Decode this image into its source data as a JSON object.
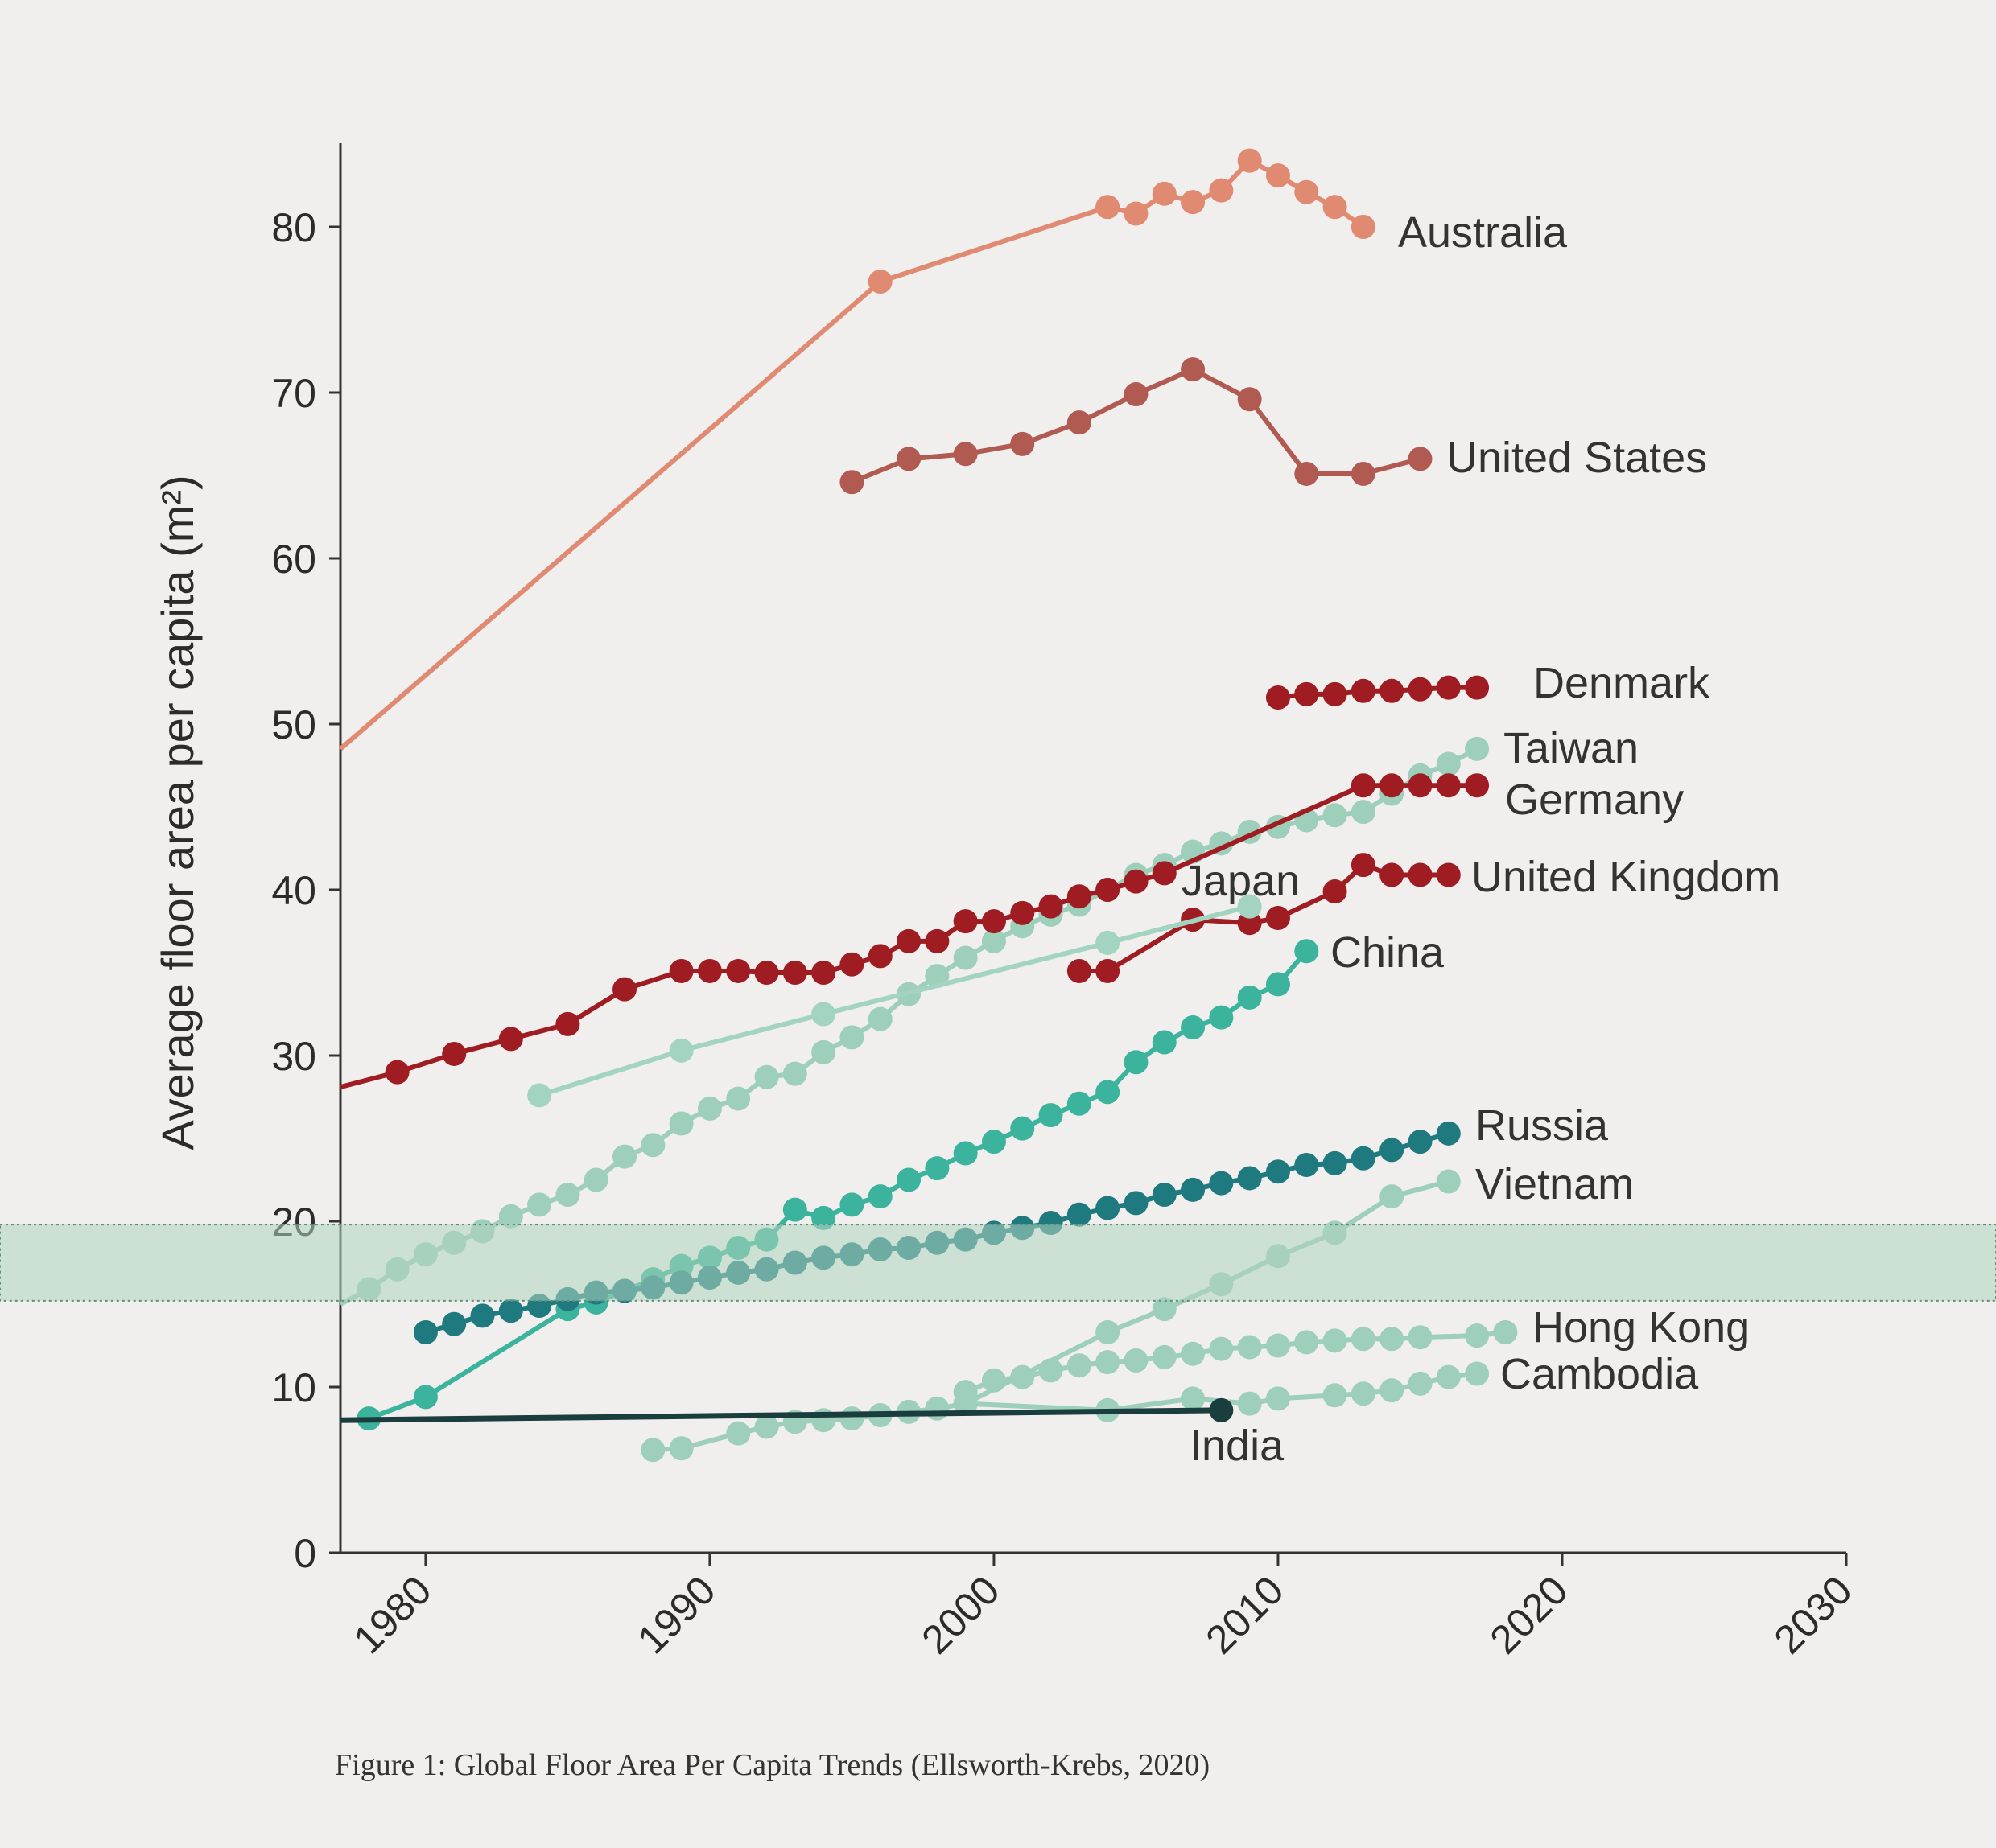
{
  "caption": "Figure 1: Global Floor Area Per Capita Trends (Ellsworth-Krebs, 2020)",
  "chart_data": {
    "type": "line",
    "title": "",
    "xlabel": "",
    "ylabel": "Average floor area per capita (m²)",
    "xlim": [
      1977,
      2030
    ],
    "ylim": [
      0,
      85
    ],
    "x_ticks": [
      1980,
      1990,
      2000,
      2010,
      2020,
      2030
    ],
    "y_ticks": [
      0,
      10,
      20,
      30,
      40,
      50,
      60,
      70,
      80
    ],
    "grid": false,
    "highlight_band": {
      "y_from": 15.2,
      "y_to": 19.8,
      "color": "#aed4bd"
    },
    "series": [
      {
        "name": "Australia",
        "color": "#e08a72",
        "marker": true,
        "x": [
          1977,
          1996,
          2004,
          2005,
          2006,
          2007,
          2008,
          2009,
          2010,
          2011,
          2012,
          2013
        ],
        "y": [
          48.5,
          76.7,
          81.2,
          80.8,
          82,
          81.5,
          82.2,
          84,
          83.1,
          82.1,
          81.2,
          80
        ]
      },
      {
        "name": "United States",
        "color": "#b05a52",
        "marker": true,
        "x": [
          1995,
          1997,
          1999,
          2001,
          2003,
          2005,
          2007,
          2009,
          2011,
          2013,
          2015
        ],
        "y": [
          64.6,
          66,
          66.3,
          66.9,
          68.2,
          69.9,
          71.4,
          69.6,
          65.1,
          65.1,
          66
        ]
      },
      {
        "name": "Denmark",
        "color": "#9e1c22",
        "marker": true,
        "x": [
          2010,
          2011,
          2012,
          2013,
          2014,
          2015,
          2016,
          2017
        ],
        "y": [
          51.6,
          51.8,
          51.8,
          52,
          52,
          52.1,
          52.2,
          52.2
        ]
      },
      {
        "name": "Taiwan",
        "color": "#9dcfba",
        "marker": true,
        "x": [
          1977,
          1978,
          1979,
          1980,
          1981,
          1982,
          1983,
          1984,
          1985,
          1986,
          1987,
          1988,
          1989,
          1990,
          1991,
          1992,
          1993,
          1994,
          1995,
          1996,
          1997,
          1998,
          1999,
          2000,
          2001,
          2002,
          2003,
          2004,
          2005,
          2006,
          2007,
          2008,
          2009,
          2010,
          2011,
          2012,
          2013,
          2014,
          2015,
          2016,
          2017
        ],
        "y": [
          15,
          15.9,
          17.1,
          18,
          18.7,
          19.4,
          20.3,
          21,
          21.6,
          22.5,
          23.9,
          24.6,
          25.9,
          26.8,
          27.4,
          28.7,
          28.9,
          30.2,
          31.1,
          32.2,
          33.7,
          34.8,
          35.9,
          36.9,
          37.8,
          38.5,
          39.1,
          40,
          40.9,
          41.5,
          42.3,
          42.8,
          43.5,
          43.8,
          44.2,
          44.5,
          44.7,
          45.8,
          46.9,
          47.6,
          48.5
        ]
      },
      {
        "name": "Germany",
        "color": "#9e1c22",
        "marker": true,
        "x": [
          1977,
          1979,
          1981,
          1983,
          1985,
          1987,
          1989,
          1990,
          1991,
          1992,
          1993,
          1994,
          1995,
          1996,
          1997,
          1998,
          1999,
          2000,
          2001,
          2002,
          2003,
          2004,
          2005,
          2006,
          2013,
          2014,
          2015,
          2016,
          2017
        ],
        "y": [
          28.1,
          29,
          30.1,
          31,
          31.9,
          34,
          35.1,
          35.1,
          35.1,
          35,
          35,
          35,
          35.5,
          36,
          36.9,
          36.9,
          38.1,
          38.1,
          38.6,
          39,
          39.6,
          40,
          40.5,
          41,
          46.3,
          46.3,
          46.3,
          46.3,
          46.3
        ]
      },
      {
        "name": "United Kingdom",
        "color": "#9e1c22",
        "marker": true,
        "x": [
          2003,
          2004,
          2007,
          2009,
          2010,
          2012,
          2013,
          2014,
          2015,
          2016
        ],
        "y": [
          35.1,
          35.1,
          38.2,
          38,
          38.3,
          39.9,
          41.5,
          40.9,
          40.9,
          40.9
        ]
      },
      {
        "name": "Japan",
        "color": "#a3d4c1",
        "marker": true,
        "x": [
          1984,
          1989,
          1994,
          2004,
          2009
        ],
        "y": [
          27.6,
          30.3,
          32.5,
          36.8,
          39
        ]
      },
      {
        "name": "China",
        "color": "#3cb39c",
        "marker": true,
        "x": [
          1978,
          1980,
          1985,
          1986,
          1987,
          1988,
          1989,
          1990,
          1991,
          1992,
          1993,
          1994,
          1995,
          1996,
          1997,
          1998,
          1999,
          2000,
          2001,
          2002,
          2003,
          2004,
          2005,
          2006,
          2007,
          2008,
          2009,
          2010,
          2011
        ],
        "y": [
          8.1,
          9.4,
          14.7,
          15.1,
          15.8,
          16.5,
          17.3,
          17.8,
          18.4,
          18.9,
          20.7,
          20.2,
          21,
          21.5,
          22.5,
          23.2,
          24.1,
          24.8,
          25.6,
          26.4,
          27.1,
          27.8,
          29.6,
          30.8,
          31.7,
          32.3,
          33.5,
          34.3,
          36.3
        ]
      },
      {
        "name": "Russia",
        "color": "#1f7a80",
        "marker": true,
        "x": [
          1980,
          1981,
          1982,
          1983,
          1984,
          1985,
          1986,
          1987,
          1988,
          1989,
          1990,
          1991,
          1992,
          1993,
          1994,
          1995,
          1996,
          1997,
          1998,
          1999,
          2000,
          2001,
          2002,
          2003,
          2004,
          2005,
          2006,
          2007,
          2008,
          2009,
          2010,
          2011,
          2012,
          2013,
          2014,
          2015,
          2016
        ],
        "y": [
          13.3,
          13.8,
          14.3,
          14.6,
          14.9,
          15.3,
          15.7,
          15.8,
          16,
          16.3,
          16.6,
          16.9,
          17.1,
          17.5,
          17.8,
          18,
          18.3,
          18.4,
          18.7,
          18.9,
          19.3,
          19.6,
          19.9,
          20.4,
          20.8,
          21.1,
          21.6,
          21.9,
          22.3,
          22.6,
          23,
          23.4,
          23.5,
          23.8,
          24.3,
          24.8,
          25.3
        ]
      },
      {
        "name": "Vietnam",
        "color": "#9dcfba",
        "marker": true,
        "x": [
          1999,
          2004,
          2006,
          2008,
          2010,
          2012,
          2014,
          2016
        ],
        "y": [
          9,
          13.3,
          14.7,
          16.2,
          17.9,
          19.3,
          21.5,
          22.4
        ]
      },
      {
        "name": "Hong Kong",
        "color": "#9dcfba",
        "marker": true,
        "x": [
          1999,
          2000,
          2001,
          2002,
          2003,
          2004,
          2005,
          2006,
          2007,
          2008,
          2009,
          2010,
          2011,
          2012,
          2013,
          2014,
          2015,
          2017,
          2018
        ],
        "y": [
          9.7,
          10.4,
          10.6,
          11,
          11.3,
          11.5,
          11.6,
          11.8,
          12,
          12.3,
          12.4,
          12.5,
          12.7,
          12.8,
          12.9,
          12.9,
          13,
          13.1,
          13.3
        ]
      },
      {
        "name": "Cambodia",
        "color": "#9dcfba",
        "marker": true,
        "x": [
          1988,
          1989,
          1991,
          1992,
          1993,
          1994,
          1995,
          1996,
          1997,
          1998,
          1999,
          2004,
          2007,
          2009,
          2010,
          2012,
          2013,
          2014,
          2015,
          2016,
          2017
        ],
        "y": [
          6.2,
          6.3,
          7.2,
          7.6,
          7.9,
          8,
          8.1,
          8.3,
          8.5,
          8.7,
          9,
          8.6,
          9.3,
          9,
          9.3,
          9.5,
          9.6,
          9.8,
          10.2,
          10.6,
          10.8
        ]
      },
      {
        "name": "India",
        "color": "#1a3d3d",
        "marker": true,
        "x": [
          1977,
          2008
        ],
        "y": [
          8,
          8.6
        ]
      }
    ]
  }
}
